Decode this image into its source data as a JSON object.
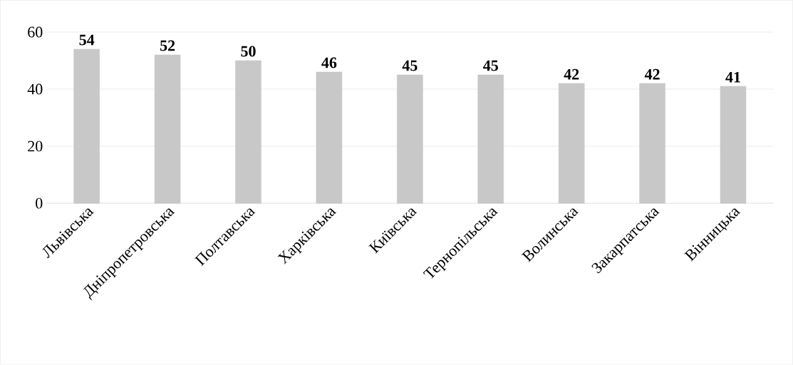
{
  "chart_data": {
    "type": "bar",
    "categories": [
      "Львівська",
      "Дніпропетровська",
      "Полтавська",
      "Харківська",
      "Київська",
      "Тернопільська",
      "Волинська",
      "Закарпатська",
      "Вінницька"
    ],
    "values": [
      54,
      52,
      50,
      46,
      45,
      45,
      42,
      42,
      41
    ],
    "color": "#c8c8c8",
    "ylim": [
      0,
      60
    ],
    "yticks": [
      0,
      20,
      40,
      60
    ],
    "grid": "y",
    "data_labels": true
  }
}
